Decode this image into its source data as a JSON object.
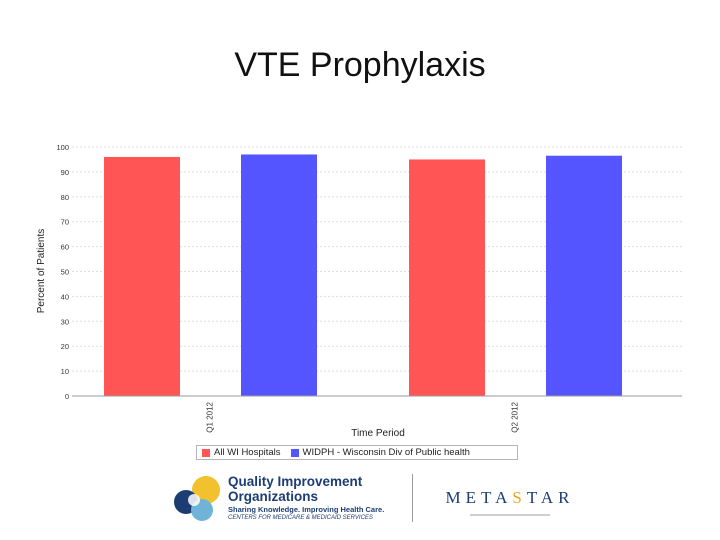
{
  "slide": {
    "title": "VTE Prophylaxis"
  },
  "chart_data": {
    "type": "bar",
    "categories": [
      "Q1 2012",
      "Q2 2012"
    ],
    "series": [
      {
        "name": "All WI Hospitals",
        "color": "#ff5555",
        "values": [
          96,
          95
        ]
      },
      {
        "name": "WIDPH - Wisconsin Div of Public health",
        "color": "#5555ff",
        "values": [
          97,
          96.5
        ]
      }
    ],
    "ylabel": "Percent of Patients",
    "xlabel": "Time Period",
    "ylim": [
      0,
      100
    ],
    "yticks": [
      0,
      10,
      20,
      30,
      40,
      50,
      60,
      70,
      80,
      90,
      100
    ],
    "grid": true,
    "legend_position": "bottom"
  },
  "logos": {
    "qio": {
      "title_line1": "Quality Improvement",
      "title_line2": "Organizations",
      "tagline": "Sharing Knowledge. Improving Health Care.",
      "sub": "CENTERS FOR MEDICARE & MEDICAID SERVICES"
    },
    "metastar": {
      "part1": "METASTAR",
      "star_color": "#e8a617"
    }
  }
}
